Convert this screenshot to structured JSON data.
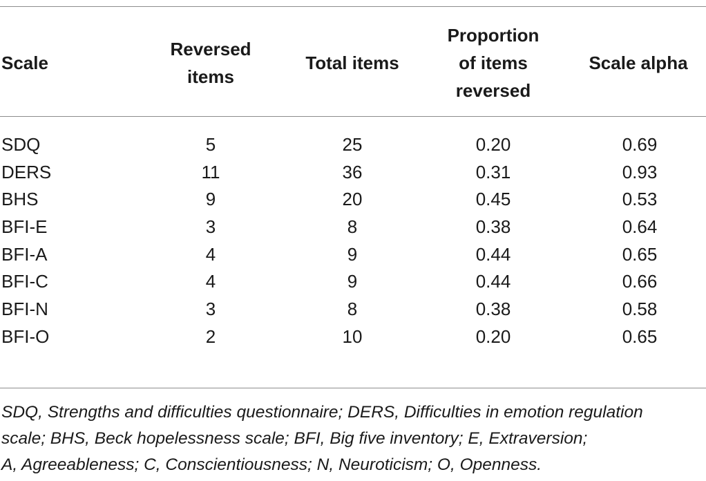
{
  "table": {
    "headers": {
      "scale": "Scale",
      "reversed": [
        "Reversed",
        "items"
      ],
      "total": "Total items",
      "proportion": [
        "Proportion",
        "of items",
        "reversed"
      ],
      "alpha": "Scale alpha"
    },
    "rows": [
      {
        "scale": "SDQ",
        "reversed": "5",
        "total": "25",
        "proportion": "0.20",
        "alpha": "0.69"
      },
      {
        "scale": "DERS",
        "reversed": "11",
        "total": "36",
        "proportion": "0.31",
        "alpha": "0.93"
      },
      {
        "scale": "BHS",
        "reversed": "9",
        "total": "20",
        "proportion": "0.45",
        "alpha": "0.53"
      },
      {
        "scale": "BFI-E",
        "reversed": "3",
        "total": "8",
        "proportion": "0.38",
        "alpha": "0.64"
      },
      {
        "scale": "BFI-A",
        "reversed": "4",
        "total": "9",
        "proportion": "0.44",
        "alpha": "0.65"
      },
      {
        "scale": "BFI-C",
        "reversed": "4",
        "total": "9",
        "proportion": "0.44",
        "alpha": "0.66"
      },
      {
        "scale": "BFI-N",
        "reversed": "3",
        "total": "8",
        "proportion": "0.38",
        "alpha": "0.58"
      },
      {
        "scale": "BFI-O",
        "reversed": "2",
        "total": "10",
        "proportion": "0.20",
        "alpha": "0.65"
      }
    ]
  },
  "footnote": {
    "lines": [
      "SDQ, Strengths and difficulties questionnaire; DERS, Difficulties in emotion regulation",
      "scale; BHS, Beck hopelessness scale; BFI, Big five inventory; E, Extraversion;",
      "A, Agreeableness; C, Conscientiousness; N, Neuroticism; O, Openness."
    ]
  }
}
